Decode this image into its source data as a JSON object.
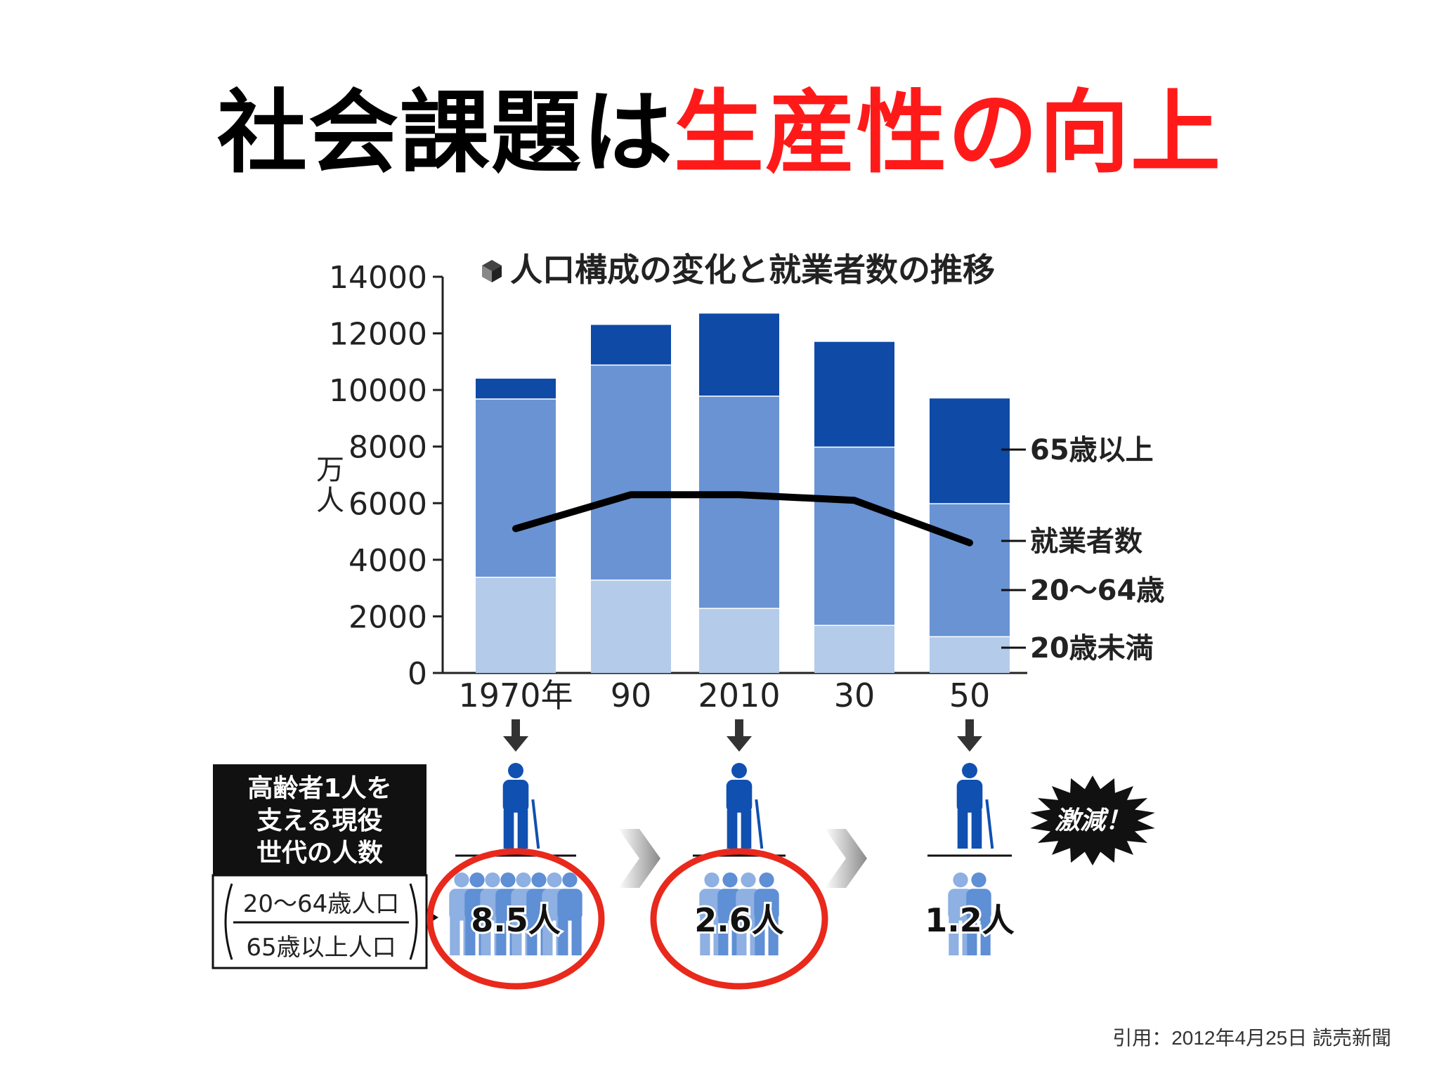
{
  "slide": {
    "title_black": "社会課題は",
    "title_red": "生産性の向上",
    "citation": "引用：2012年4月25日 読売新聞"
  },
  "chart_data": {
    "type": "bar",
    "title": "人口構成の変化と就業者数の推移",
    "title_icon": "cube-icon",
    "ylabel": "万人",
    "ylim": [
      0,
      14000
    ],
    "yticks": [
      0,
      2000,
      4000,
      6000,
      8000,
      10000,
      12000,
      14000
    ],
    "stacked": true,
    "categories": [
      "1970年",
      "90",
      "2010",
      "30",
      "50"
    ],
    "series": [
      {
        "name": "20歳未満",
        "values": [
          3400,
          3300,
          2300,
          1700,
          1300
        ]
      },
      {
        "name": "20〜64歳",
        "values": [
          6300,
          7600,
          7500,
          6300,
          4700
        ]
      },
      {
        "name": "65歳以上",
        "values": [
          700,
          1400,
          2900,
          3700,
          3700
        ]
      }
    ],
    "line_series": {
      "name": "就業者数",
      "values": [
        5100,
        6300,
        6300,
        6100,
        4600
      ]
    },
    "colors": {
      "under20": "#b4cbea",
      "age20_64": "#6993d3",
      "over65": "#0f4aa7",
      "line": "#000000",
      "axis": "#222222"
    },
    "legend_placement": "right"
  },
  "support_panel": {
    "label_lines": [
      "高齢者1人を",
      "支える現役",
      "世代の人数"
    ],
    "formula_numerator": "20〜64歳人口",
    "formula_denominator": "65歳以上人口",
    "values": [
      {
        "year": "1970年",
        "value": "8.5人",
        "highlighted": true
      },
      {
        "year": "2010",
        "value": "2.6人",
        "highlighted": true
      },
      {
        "year": "50",
        "value": "1.2人",
        "highlighted": false
      }
    ],
    "burst_label": "激減！",
    "colors": {
      "elder": "#1050b0",
      "worker_light": "#8eb0e2",
      "worker_mid": "#5f8fd4",
      "highlight": "#e8291c",
      "arrow_grey": "#9a9a9a"
    }
  }
}
